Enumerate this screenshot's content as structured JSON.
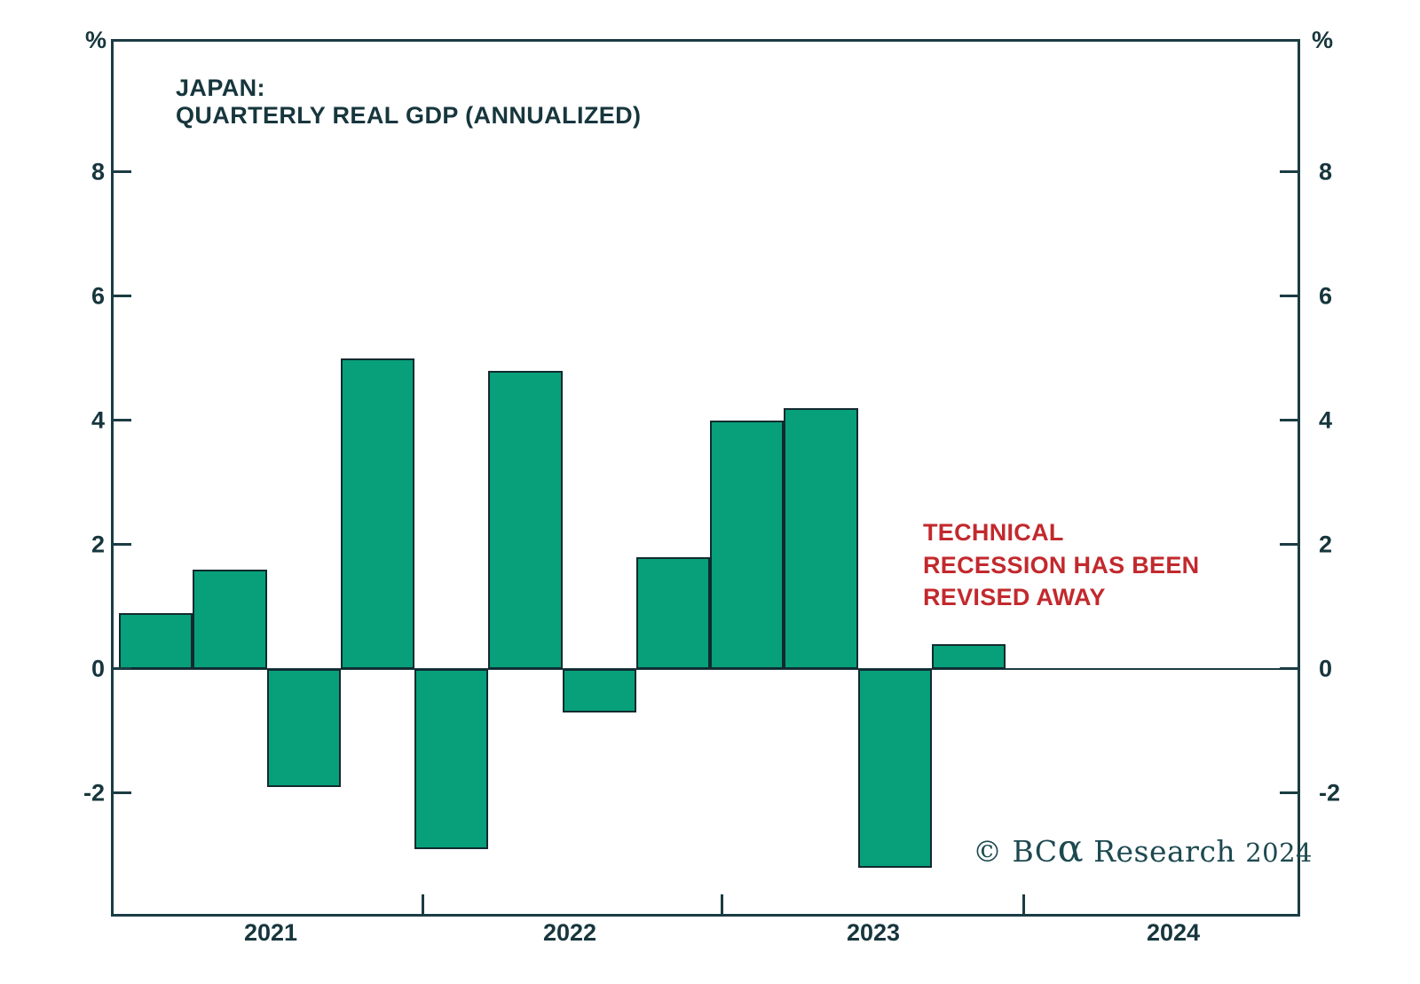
{
  "chart_data": {
    "type": "bar",
    "title_line1": "JAPAN:",
    "title_line2": "QUARTERLY REAL GDP (ANNUALIZED)",
    "unit_label": "%",
    "categories": [
      "2021 Q1",
      "2021 Q2",
      "2021 Q3",
      "2021 Q4",
      "2022 Q1",
      "2022 Q2",
      "2022 Q3",
      "2022 Q4",
      "2023 Q1",
      "2023 Q2",
      "2023 Q3",
      "2023 Q4"
    ],
    "values": [
      0.9,
      1.6,
      -1.9,
      5.0,
      -2.9,
      4.8,
      -0.7,
      1.8,
      4.0,
      4.2,
      -3.2,
      0.4
    ],
    "x_year_labels": [
      "2021",
      "2022",
      "2023",
      "2024"
    ],
    "y_ticks": [
      8,
      6,
      4,
      2,
      0,
      -2
    ],
    "ylim": [
      -4.1,
      10.1
    ],
    "grid": "off",
    "legend": "none",
    "bar_color": "#07a07a",
    "bar_border_color": "#122a2f",
    "axis_color": "#1b3c43",
    "text_color": "#17363d"
  },
  "annotation": {
    "line1": "TECHNICAL",
    "line2": "RECESSION HAS BEEN",
    "line3": "REVISED AWAY",
    "color": "#c2292d"
  },
  "watermark": {
    "copyright": "© ",
    "brand_prefix": "BC",
    "brand_alpha": "α",
    "brand_suffix": " Research ",
    "year": "2024"
  }
}
